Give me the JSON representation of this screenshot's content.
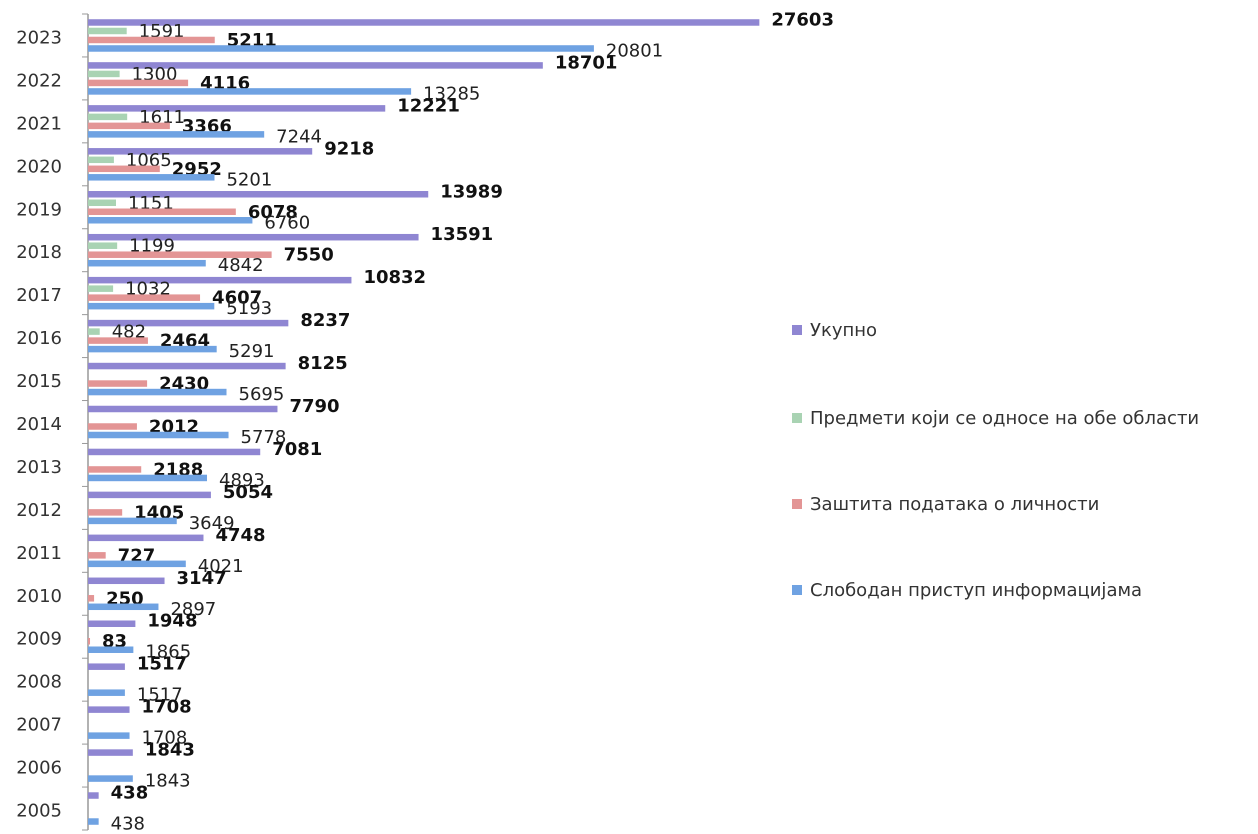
{
  "chart_data": {
    "type": "bar",
    "orientation": "horizontal",
    "categories": [
      "2023",
      "2022",
      "2021",
      "2020",
      "2019",
      "2018",
      "2017",
      "2016",
      "2015",
      "2014",
      "2013",
      "2012",
      "2011",
      "2010",
      "2009",
      "2008",
      "2007",
      "2006",
      "2005"
    ],
    "series": [
      {
        "name": "Укупно",
        "color": "#8f86d2",
        "values": [
          27603,
          18701,
          12221,
          9218,
          13989,
          13591,
          10832,
          8237,
          8125,
          7790,
          7081,
          5054,
          4748,
          3147,
          1948,
          1517,
          1708,
          1843,
          438
        ]
      },
      {
        "name": "Предмети који се односе на обе области",
        "color": "#a9d3b3",
        "values": [
          1591,
          1300,
          1611,
          1065,
          1151,
          1199,
          1032,
          482,
          null,
          null,
          null,
          null,
          null,
          null,
          null,
          null,
          null,
          null,
          null
        ]
      },
      {
        "name": "Заштита података о личности",
        "color": "#e39595",
        "values": [
          5211,
          4116,
          3366,
          2952,
          6078,
          7550,
          4607,
          2464,
          2430,
          2012,
          2188,
          1405,
          727,
          250,
          83,
          null,
          null,
          null,
          null
        ]
      },
      {
        "name": "Слободан приступ информацијама",
        "color": "#6fa2e2",
        "values": [
          20801,
          13285,
          7244,
          5201,
          6760,
          4842,
          5193,
          5291,
          5695,
          5778,
          4893,
          3649,
          4021,
          2897,
          1865,
          1517,
          1708,
          1843,
          438
        ]
      }
    ],
    "xlim": [
      0,
      28000
    ],
    "legend": "right"
  }
}
